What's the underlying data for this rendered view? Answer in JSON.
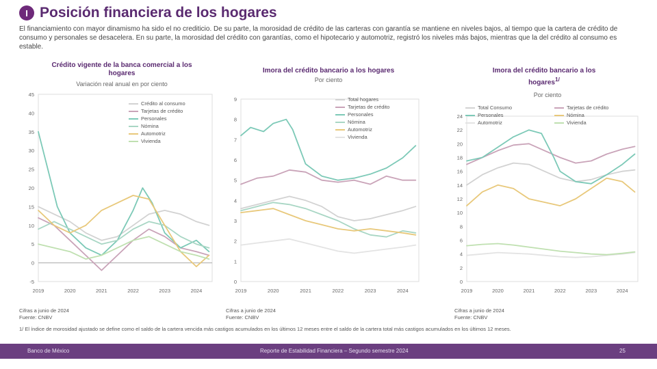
{
  "header": {
    "badge": "I",
    "title": "Posición financiera de los hogares",
    "intro": "El financiamiento con mayor dinamismo ha sido el no crediticio. De su parte, la morosidad de crédito de las carteras con garantía se mantiene en niveles bajos, al tiempo que la cartera de crédito de consumo y personales se desacelera. En su parte, la morosidad del crédito con garantías, como el hipotecario y automotriz, registró los niveles más bajos, mientras que la del crédito al consumo es estable."
  },
  "colors": {
    "brand": "#5a2a70",
    "footer_bg": "#6b3f80",
    "tarjetas": "#c9a3b8",
    "nomina": "#a8d6c4",
    "personales": "#7cc9b7",
    "total": "#d2d2d2",
    "automotriz": "#e8c87a",
    "hipotecario": "#e3e3e3",
    "other": "#bfe0b0"
  },
  "chart_data": [
    {
      "type": "line",
      "title": "Crédito vigente de la banca comercial a los hogares",
      "subtitle": "Variación real anual en por ciento",
      "x_ticks": [
        "2019",
        "2020",
        "2021",
        "2022",
        "2023",
        "2024"
      ],
      "xlim": [
        2019,
        2024.5
      ],
      "ylim": [
        -5,
        45
      ],
      "y_ticks": [
        -5,
        0,
        5,
        10,
        15,
        20,
        25,
        30,
        35,
        40,
        45
      ],
      "legend": [
        "Crédito al consumo",
        "Tarjetas de crédito",
        "Personales",
        "Nómina",
        "Automotriz",
        "Vivienda"
      ],
      "series": [
        {
          "name": "Crédito al consumo",
          "color": "#d2d2d2",
          "x": [
            2019,
            2019.5,
            2020,
            2020.5,
            2021,
            2021.5,
            2022,
            2022.5,
            2023,
            2023.5,
            2024,
            2024.4
          ],
          "y": [
            15,
            13,
            11,
            8,
            6,
            7,
            10,
            13,
            14,
            13,
            11,
            10
          ]
        },
        {
          "name": "Tarjetas de crédito",
          "color": "#c9a3b8",
          "x": [
            2019,
            2019.5,
            2020,
            2020.5,
            2021,
            2021.5,
            2022,
            2022.5,
            2023,
            2023.5,
            2024,
            2024.4
          ],
          "y": [
            12,
            10,
            6,
            2,
            -2,
            2,
            6,
            9,
            7,
            4,
            3,
            2
          ]
        },
        {
          "name": "Personales",
          "color": "#7cc9b7",
          "x": [
            2019,
            2019.3,
            2019.6,
            2020,
            2020.5,
            2021,
            2021.5,
            2022,
            2022.3,
            2022.6,
            2023,
            2023.5,
            2024,
            2024.4
          ],
          "y": [
            35,
            25,
            15,
            8,
            4,
            2,
            6,
            14,
            20,
            16,
            8,
            4,
            6,
            3
          ]
        },
        {
          "name": "Nómina",
          "color": "#a8d6c4",
          "x": [
            2019,
            2019.5,
            2020,
            2020.5,
            2021,
            2021.5,
            2022,
            2022.5,
            2023,
            2023.5,
            2024,
            2024.4
          ],
          "y": [
            9,
            11,
            9,
            7,
            5,
            6,
            9,
            11,
            10,
            7,
            5,
            4
          ]
        },
        {
          "name": "Automotriz",
          "color": "#e8c87a",
          "x": [
            2019,
            2019.5,
            2020,
            2020.5,
            2021,
            2021.5,
            2022,
            2022.5,
            2023,
            2023.5,
            2024,
            2024.4
          ],
          "y": [
            14,
            10,
            8,
            10,
            14,
            16,
            18,
            17,
            10,
            3,
            -1,
            2
          ]
        },
        {
          "name": "Vivienda",
          "color": "#bfe0b0",
          "x": [
            2019,
            2019.5,
            2020,
            2020.5,
            2021,
            2021.5,
            2022,
            2022.5,
            2023,
            2023.5,
            2024,
            2024.4
          ],
          "y": [
            5,
            4,
            3,
            1,
            2,
            4,
            6,
            7,
            5,
            3,
            2,
            1
          ]
        }
      ],
      "zero_line": 0,
      "notes": [
        "Cifras a junio de 2024",
        "Fuente: CNBV"
      ]
    },
    {
      "type": "line",
      "title": "Imora del crédito bancario a los hogares",
      "subtitle": "Por ciento",
      "x_ticks": [
        "2019",
        "2020",
        "2021",
        "2022",
        "2023",
        "2024"
      ],
      "xlim": [
        2019,
        2024.5
      ],
      "ylim": [
        0,
        9
      ],
      "y_ticks": [
        0,
        1,
        2,
        3,
        4,
        5,
        6,
        7,
        8,
        9
      ],
      "legend": [
        "Total hogares",
        "Tarjetas de crédito",
        "Personales",
        "Nómina",
        "Automotriz",
        "Vivienda"
      ],
      "series": [
        {
          "name": "Total hogares",
          "color": "#d2d2d2",
          "x": [
            2019,
            2019.5,
            2020,
            2020.5,
            2021,
            2021.5,
            2022,
            2022.5,
            2023,
            2023.5,
            2024,
            2024.4
          ],
          "y": [
            3.6,
            3.8,
            4.0,
            4.2,
            4.0,
            3.7,
            3.2,
            3.0,
            3.1,
            3.3,
            3.5,
            3.7
          ]
        },
        {
          "name": "Tarjetas de crédito",
          "color": "#c9a3b8",
          "x": [
            2019,
            2019.5,
            2020,
            2020.5,
            2021,
            2021.5,
            2022,
            2022.5,
            2023,
            2023.5,
            2024,
            2024.4
          ],
          "y": [
            4.8,
            5.1,
            5.2,
            5.5,
            5.4,
            5.0,
            4.9,
            5.0,
            4.8,
            5.2,
            5.0,
            5.0
          ]
        },
        {
          "name": "Personales",
          "color": "#7cc9b7",
          "x": [
            2019,
            2019.3,
            2019.7,
            2020,
            2020.4,
            2020.6,
            2021,
            2021.5,
            2022,
            2022.5,
            2023,
            2023.5,
            2024,
            2024.4
          ],
          "y": [
            7.2,
            7.6,
            7.4,
            7.8,
            8.0,
            7.5,
            5.8,
            5.2,
            5.0,
            5.1,
            5.3,
            5.6,
            6.1,
            6.7
          ]
        },
        {
          "name": "Nómina",
          "color": "#a8d6c4",
          "x": [
            2019,
            2019.5,
            2020,
            2020.5,
            2021,
            2021.5,
            2022,
            2022.5,
            2023,
            2023.5,
            2024,
            2024.4
          ],
          "y": [
            3.5,
            3.7,
            3.9,
            3.8,
            3.6,
            3.3,
            3.0,
            2.6,
            2.3,
            2.2,
            2.5,
            2.4
          ]
        },
        {
          "name": "Automotriz",
          "color": "#e8c87a",
          "x": [
            2019,
            2019.5,
            2020,
            2020.5,
            2021,
            2021.5,
            2022,
            2022.5,
            2023,
            2023.5,
            2024,
            2024.4
          ],
          "y": [
            3.4,
            3.5,
            3.6,
            3.3,
            3.0,
            2.8,
            2.6,
            2.5,
            2.6,
            2.5,
            2.4,
            2.3
          ]
        },
        {
          "name": "Vivienda",
          "color": "#e3e3e3",
          "x": [
            2019,
            2019.5,
            2020,
            2020.5,
            2021,
            2021.5,
            2022,
            2022.5,
            2023,
            2023.5,
            2024,
            2024.4
          ],
          "y": [
            1.8,
            1.9,
            2.0,
            2.1,
            1.9,
            1.7,
            1.5,
            1.4,
            1.5,
            1.6,
            1.7,
            1.8
          ]
        }
      ],
      "notes": [
        "Cifras a junio de 2024",
        "Fuente: CNBV"
      ]
    },
    {
      "type": "line",
      "title": "Imora del crédito bancario a los hogares",
      "title_superscript": "1/",
      "subtitle": "Por ciento",
      "x_ticks": [
        "2019",
        "2020",
        "2021",
        "2022",
        "2023",
        "2024"
      ],
      "xlim": [
        2019,
        2024.5
      ],
      "ylim": [
        0,
        24
      ],
      "y_ticks": [
        0,
        2,
        4,
        6,
        8,
        10,
        12,
        14,
        16,
        18,
        20,
        22,
        24
      ],
      "legend": [
        "Total Consumo",
        "Tarjetas de crédito",
        "Personales",
        "Nómina",
        "Automotriz",
        "Vivienda"
      ],
      "series": [
        {
          "name": "Total Consumo",
          "color": "#d2d2d2",
          "x": [
            2019,
            2019.5,
            2020,
            2020.5,
            2021,
            2021.5,
            2022,
            2022.5,
            2023,
            2023.5,
            2024,
            2024.4
          ],
          "y": [
            14,
            15.5,
            16.5,
            17.2,
            17,
            16,
            15,
            14.5,
            14.8,
            15.5,
            16,
            16.2
          ]
        },
        {
          "name": "Tarjetas de crédito",
          "color": "#c9a3b8",
          "x": [
            2019,
            2019.5,
            2020,
            2020.5,
            2021,
            2021.5,
            2022,
            2022.5,
            2023,
            2023.5,
            2024,
            2024.4
          ],
          "y": [
            17,
            18,
            19,
            19.8,
            20,
            19,
            18,
            17.2,
            17.5,
            18.5,
            19.2,
            19.6
          ]
        },
        {
          "name": "Personales",
          "color": "#7cc9b7",
          "x": [
            2019,
            2019.5,
            2020,
            2020.5,
            2021,
            2021.4,
            2021.8,
            2022,
            2022.5,
            2023,
            2023.5,
            2024,
            2024.4
          ],
          "y": [
            17.5,
            18,
            19.5,
            21,
            22,
            21.5,
            18,
            16,
            14.5,
            14.2,
            15.5,
            17,
            18.5
          ]
        },
        {
          "name": "Nómina",
          "color": "#e8c87a",
          "x": [
            2019,
            2019.5,
            2020,
            2020.5,
            2021,
            2021.5,
            2022,
            2022.5,
            2023,
            2023.5,
            2024,
            2024.4
          ],
          "y": [
            11,
            13,
            14,
            13.5,
            12,
            11.5,
            11,
            12,
            13.5,
            15,
            14.5,
            13
          ]
        },
        {
          "name": "Automotriz",
          "color": "#e3e3e3",
          "x": [
            2019,
            2019.5,
            2020,
            2020.5,
            2021,
            2021.5,
            2022,
            2022.5,
            2023,
            2023.5,
            2024,
            2024.4
          ],
          "y": [
            3.8,
            4.0,
            4.2,
            4.1,
            4.0,
            3.8,
            3.6,
            3.5,
            3.6,
            3.8,
            4.0,
            4.2
          ]
        },
        {
          "name": "Vivienda",
          "color": "#bfe0b0",
          "x": [
            2019,
            2019.5,
            2020,
            2020.5,
            2021,
            2021.5,
            2022,
            2022.5,
            2023,
            2023.5,
            2024,
            2024.4
          ],
          "y": [
            5.2,
            5.4,
            5.5,
            5.3,
            5.0,
            4.7,
            4.4,
            4.2,
            4.0,
            3.9,
            4.1,
            4.3
          ]
        }
      ],
      "notes": [
        "Cifras a junio de 2024",
        "Fuente: CNBV"
      ]
    }
  ],
  "footnote": "1/ El índice de morosidad ajustado se define como el saldo de la cartera vencida más castigos acumulados en los últimos 12 meses entre el saldo de la cartera total más castigos acumulados en los últimos 12 meses.",
  "footer": {
    "left": "Banco de México",
    "center": "Reporte de Estabilidad Financiera – Segundo semestre 2024",
    "right": "25"
  }
}
